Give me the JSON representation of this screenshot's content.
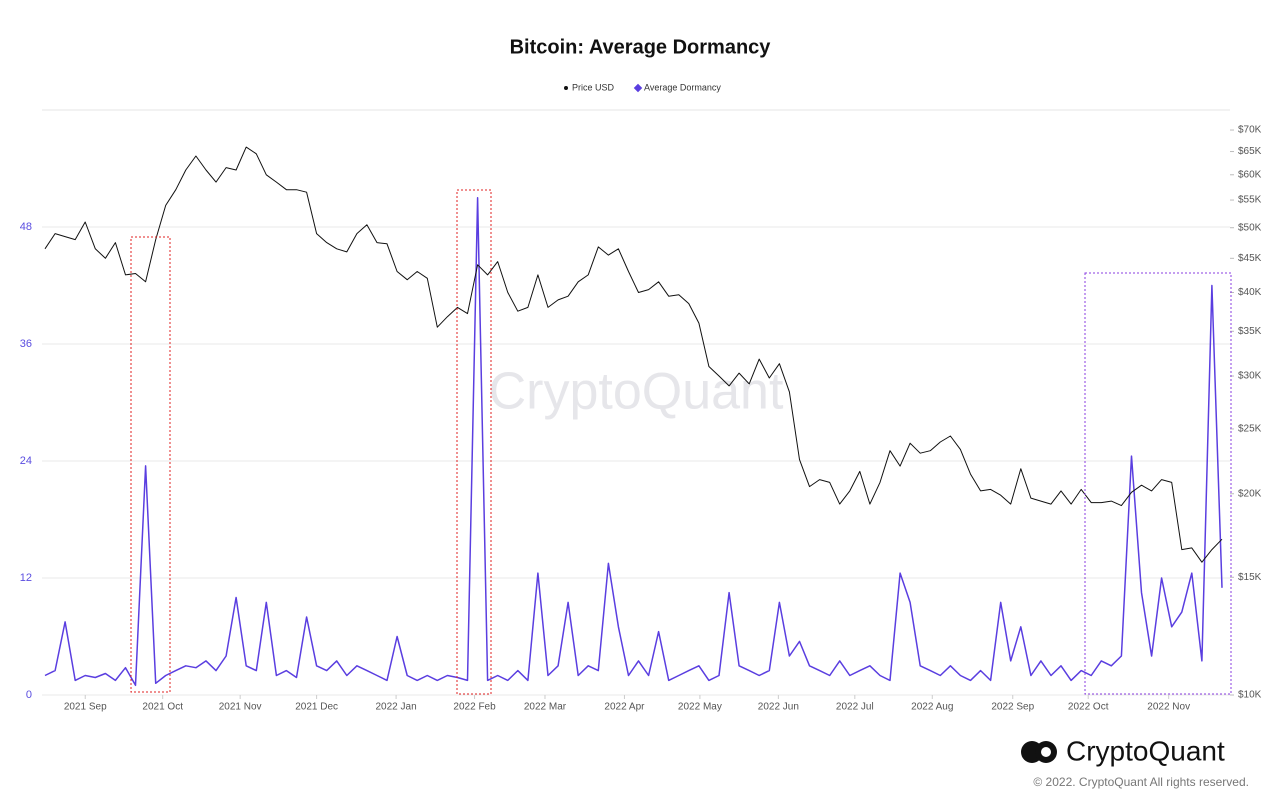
{
  "chart_data": {
    "type": "line",
    "title": "Bitcoin: Average Dormancy",
    "watermark": "CryptoQuant",
    "logo": "CryptoQuant",
    "copyright": "© 2022. CryptoQuant All rights reserved.",
    "xlim": [
      0,
      117
    ],
    "xticks": [
      {
        "value": 4,
        "label": "2021 Sep"
      },
      {
        "value": 11.7,
        "label": "2021 Oct"
      },
      {
        "value": 19.4,
        "label": "2021 Nov"
      },
      {
        "value": 27,
        "label": "2021 Dec"
      },
      {
        "value": 34.9,
        "label": "2022 Jan"
      },
      {
        "value": 42.7,
        "label": "2022 Feb"
      },
      {
        "value": 49.7,
        "label": "2022 Mar"
      },
      {
        "value": 57.6,
        "label": "2022 Apr"
      },
      {
        "value": 65.1,
        "label": "2022 May"
      },
      {
        "value": 72.9,
        "label": "2022 Jun"
      },
      {
        "value": 80.5,
        "label": "2022 Jul"
      },
      {
        "value": 88.2,
        "label": "2022 Aug"
      },
      {
        "value": 96.2,
        "label": "2022 Sep"
      },
      {
        "value": 103.7,
        "label": "2022 Oct"
      },
      {
        "value": 111.7,
        "label": "2022 Nov"
      }
    ],
    "ylim": [
      0,
      60
    ],
    "yticks": [
      0,
      12,
      24,
      36,
      48
    ],
    "y2lim": [
      10000,
      75000
    ],
    "y2log": true,
    "y2ticks": [
      {
        "value": 10000,
        "label": "$10K"
      },
      {
        "value": 15000,
        "label": "$15K"
      },
      {
        "value": 20000,
        "label": "$20K"
      },
      {
        "value": 25000,
        "label": "$25K"
      },
      {
        "value": 30000,
        "label": "$30K"
      },
      {
        "value": 35000,
        "label": "$35K"
      },
      {
        "value": 40000,
        "label": "$40K"
      },
      {
        "value": 45000,
        "label": "$45K"
      },
      {
        "value": 50000,
        "label": "$50K"
      },
      {
        "value": 55000,
        "label": "$55K"
      },
      {
        "value": 60000,
        "label": "$60K"
      },
      {
        "value": 65000,
        "label": "$65K"
      },
      {
        "value": 70000,
        "label": "$70K"
      }
    ],
    "grid": true,
    "series": [
      {
        "name": "Price USD",
        "color": "#111111",
        "axis": "y2",
        "values": [
          46500,
          49000,
          48500,
          48000,
          51000,
          46500,
          45000,
          47500,
          42500,
          42700,
          41500,
          48000,
          54000,
          57000,
          61000,
          64000,
          61000,
          58500,
          61500,
          61000,
          66000,
          64500,
          60000,
          58500,
          57000,
          57000,
          56500,
          49000,
          47500,
          46500,
          46000,
          49000,
          50500,
          47500,
          47300,
          43000,
          41800,
          43000,
          42000,
          35500,
          36800,
          38000,
          37200,
          44000,
          42500,
          44500,
          40000,
          37500,
          38000,
          42500,
          38000,
          39000,
          39500,
          41500,
          42500,
          46800,
          45500,
          46500,
          43000,
          40000,
          40400,
          41500,
          39500,
          39700,
          38500,
          36000,
          31000,
          30000,
          29000,
          30300,
          29200,
          31800,
          29800,
          31300,
          28400,
          22500,
          20500,
          21000,
          20800,
          19300,
          20200,
          21600,
          19300,
          20800,
          23200,
          22000,
          23800,
          23000,
          23200,
          23900,
          24400,
          23300,
          21400,
          20200,
          20300,
          19900,
          19300,
          21800,
          19700,
          19500,
          19300,
          20200,
          19300,
          20300,
          19400,
          19400,
          19500,
          19200,
          20100,
          20600,
          20200,
          21000,
          20800,
          16500,
          16600,
          15800,
          16500,
          17100
        ]
      },
      {
        "name": "Average Dormancy",
        "color": "#5a3ee0",
        "values": [
          2,
          2.5,
          7.5,
          1.5,
          2,
          1.8,
          2.2,
          1.5,
          2.8,
          1,
          23.5,
          1.2,
          2,
          2.5,
          3,
          2.8,
          3.5,
          2.5,
          4,
          10,
          3,
          2.5,
          9.5,
          2,
          2.5,
          1.8,
          8,
          3,
          2.5,
          3.5,
          2,
          3,
          2.5,
          2,
          1.5,
          6,
          2,
          1.5,
          2,
          1.5,
          2,
          1.8,
          1.5,
          51,
          1.5,
          2,
          1.5,
          2.5,
          1.5,
          12.5,
          2,
          3,
          9.5,
          2,
          3,
          2.5,
          13.5,
          7,
          2,
          3.5,
          2,
          6.5,
          1.5,
          2,
          2.5,
          3,
          1.5,
          2,
          10.5,
          3,
          2.5,
          2,
          2.5,
          9.5,
          4,
          5.5,
          3,
          2.5,
          2,
          3.5,
          2,
          2.5,
          3,
          2,
          1.5,
          12.5,
          9.5,
          3,
          2.5,
          2,
          3,
          2,
          1.5,
          2.5,
          1.5,
          9.5,
          3.5,
          7,
          2,
          3.5,
          2,
          3,
          1.5,
          2.5,
          2,
          3.5,
          3,
          4,
          24.5,
          10.5,
          4,
          12,
          7,
          8.5,
          12.5,
          3.5,
          42,
          11
        ]
      }
    ]
  }
}
